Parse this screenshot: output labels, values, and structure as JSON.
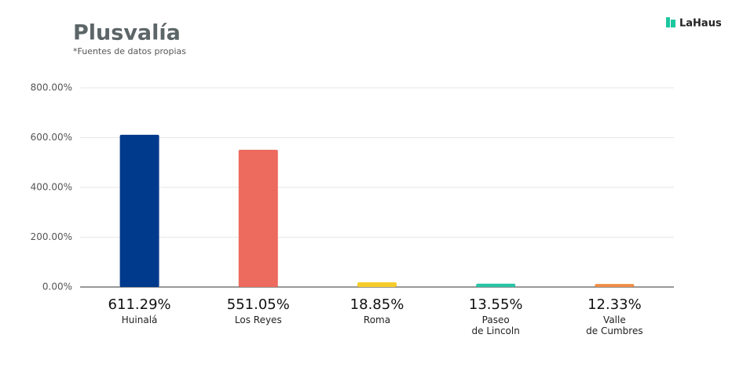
{
  "brand": "LaHaus",
  "chart_data": {
    "type": "bar",
    "title": "Plusvalía",
    "subtitle": "*Fuentes de datos propias",
    "categories": [
      "Huinalá",
      "Los Reyes",
      "Roma",
      "Paseo\nde Lincoln",
      "Valle\nde Cumbres"
    ],
    "values": [
      611.29,
      551.05,
      18.85,
      13.55,
      12.33
    ],
    "value_labels": [
      "611.29%",
      "551.05%",
      "18.85%",
      "13.55%",
      "12.33%"
    ],
    "colors": [
      "#003a8c",
      "#ec6a5e",
      "#f5cc2a",
      "#27c4a5",
      "#ef8c45"
    ],
    "ylim": [
      0,
      800
    ],
    "yticks": [
      {
        "value": 0,
        "label": "0.00%"
      },
      {
        "value": 200,
        "label": "200.00%"
      },
      {
        "value": 400,
        "label": "400.00%"
      },
      {
        "value": 600,
        "label": "600.00%"
      },
      {
        "value": 800,
        "label": "800.00%"
      }
    ],
    "grid": true
  }
}
